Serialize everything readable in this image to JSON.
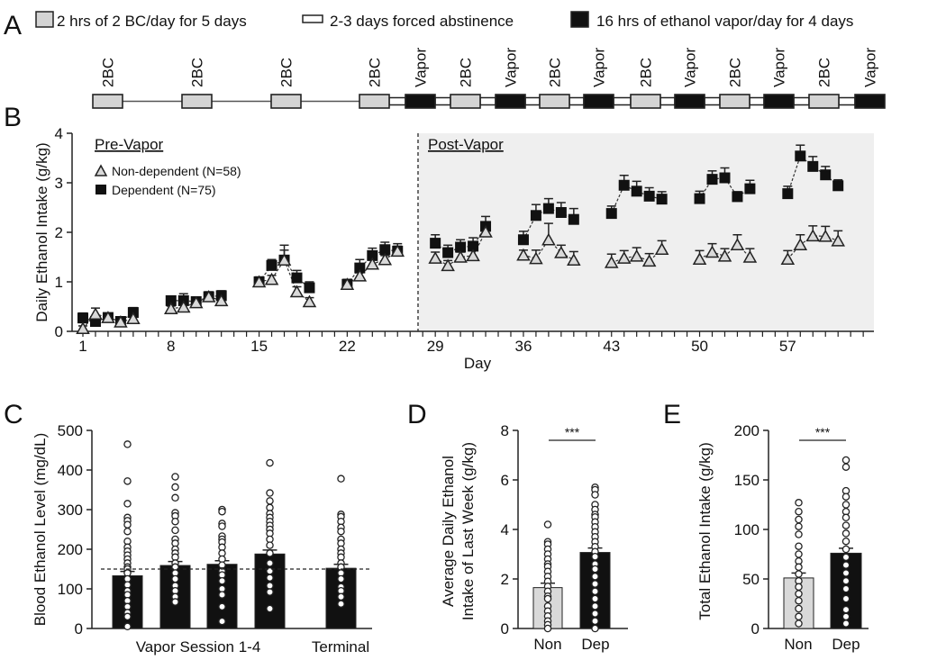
{
  "panel_letters": {
    "a": "A",
    "b": "B",
    "c": "C",
    "d": "D",
    "e": "E"
  },
  "colors": {
    "bc": "#d4d4d4",
    "vapor": "#111111",
    "non": "#d9d9d9",
    "dep": "#111111",
    "shade": "#efefef"
  },
  "panel_a": {
    "legend": [
      {
        "type": "bc",
        "label": "2 hrs of 2 BC/day for 5 days"
      },
      {
        "type": "abstinence",
        "label": "2-3 days forced abstinence"
      },
      {
        "type": "vapor",
        "label": "16 hrs of ethanol vapor/day for 4 days"
      }
    ],
    "timeline": [
      {
        "type": "bc",
        "label": "2BC"
      },
      {
        "type": "bc",
        "label": "2BC"
      },
      {
        "type": "bc",
        "label": "2BC"
      },
      {
        "type": "bc",
        "label": "2BC"
      },
      {
        "type": "vapor",
        "label": "Vapor"
      },
      {
        "type": "bc",
        "label": "2BC"
      },
      {
        "type": "vapor",
        "label": "Vapor"
      },
      {
        "type": "bc",
        "label": "2BC"
      },
      {
        "type": "vapor",
        "label": "Vapor"
      },
      {
        "type": "bc",
        "label": "2BC"
      },
      {
        "type": "vapor",
        "label": "Vapor"
      },
      {
        "type": "bc",
        "label": "2BC"
      },
      {
        "type": "vapor",
        "label": "Vapor"
      },
      {
        "type": "bc",
        "label": "2BC"
      },
      {
        "type": "vapor",
        "label": "Vapor"
      }
    ]
  },
  "chart_data": [
    {
      "id": "B",
      "type": "scatter",
      "xlabel": "Day",
      "ylabel": "Daily Ethanol Intake (g/kg)",
      "xlim": [
        0.1,
        64
      ],
      "ylim": [
        0,
        4
      ],
      "x_ticks": [
        "1",
        "8",
        "15",
        "22",
        "29",
        "36",
        "43",
        "50",
        "57"
      ],
      "y_ticks": [
        "0",
        "1",
        "2",
        "3",
        "4"
      ],
      "phase_split_day": 28,
      "pre_label": "Pre-Vapor",
      "post_label": "Post-Vapor",
      "legend": {
        "non": "Non-dependent (N=58)",
        "dep": "Dependent (N=75)",
        "placement": "top-left"
      },
      "sessions": [
        {
          "days": [
            1,
            2,
            3,
            4,
            5
          ],
          "non": [
            0.06,
            0.35,
            0.28,
            0.19,
            0.26
          ],
          "non_sem": [
            0.05,
            0.12,
            0.06,
            0.06,
            0.07
          ],
          "dep": [
            0.27,
            0.2,
            0.28,
            0.2,
            0.38
          ],
          "dep_sem": [
            0.1,
            0.06,
            0.06,
            0.05,
            0.1
          ]
        },
        {
          "days": [
            8,
            9,
            10,
            11,
            12
          ],
          "non": [
            0.46,
            0.49,
            0.58,
            0.7,
            0.62
          ],
          "non_sem": [
            0.05,
            0.06,
            0.06,
            0.08,
            0.06
          ],
          "dep": [
            0.62,
            0.62,
            0.6,
            0.7,
            0.72
          ],
          "dep_sem": [
            0.08,
            0.14,
            0.08,
            0.1,
            0.1
          ]
        },
        {
          "days": [
            15,
            16,
            17,
            18,
            19
          ],
          "non": [
            1.0,
            1.05,
            1.44,
            0.8,
            0.6
          ],
          "non_sem": [
            0.08,
            0.08,
            0.2,
            0.1,
            0.08
          ],
          "dep": [
            1.0,
            1.33,
            1.44,
            1.08,
            0.88
          ],
          "dep_sem": [
            0.1,
            0.12,
            0.3,
            0.15,
            0.12
          ]
        },
        {
          "days": [
            22,
            23,
            24,
            25,
            26
          ],
          "non": [
            0.95,
            1.12,
            1.36,
            1.45,
            1.62
          ],
          "non_sem": [
            0.06,
            0.08,
            0.08,
            0.08,
            0.1
          ],
          "dep": [
            0.95,
            1.28,
            1.53,
            1.65,
            1.62
          ],
          "dep_sem": [
            0.1,
            0.17,
            0.15,
            0.15,
            0.15
          ]
        },
        {
          "days": [
            29,
            30,
            31,
            32,
            33
          ],
          "non": [
            1.48,
            1.33,
            1.5,
            1.53,
            2.01
          ],
          "non_sem": [
            0.12,
            0.1,
            0.1,
            0.1,
            0.15
          ],
          "dep": [
            1.78,
            1.59,
            1.7,
            1.72,
            2.12
          ],
          "dep_sem": [
            0.17,
            0.15,
            0.15,
            0.17,
            0.2
          ]
        },
        {
          "days": [
            36,
            37,
            38,
            39,
            40
          ],
          "non": [
            1.54,
            1.47,
            1.85,
            1.59,
            1.44
          ],
          "non_sem": [
            0.1,
            0.17,
            0.33,
            0.15,
            0.17
          ],
          "dep": [
            1.85,
            2.34,
            2.48,
            2.4,
            2.26
          ],
          "dep_sem": [
            0.17,
            0.22,
            0.2,
            0.2,
            0.22
          ]
        },
        {
          "days": [
            43,
            44,
            45,
            46,
            47
          ],
          "non": [
            1.39,
            1.48,
            1.52,
            1.42,
            1.66
          ],
          "non_sem": [
            0.17,
            0.15,
            0.17,
            0.15,
            0.17
          ],
          "dep": [
            2.38,
            2.95,
            2.83,
            2.73,
            2.67
          ],
          "dep_sem": [
            0.15,
            0.2,
            0.2,
            0.17,
            0.15
          ]
        },
        {
          "days": [
            50,
            51,
            52,
            53,
            54
          ],
          "non": [
            1.46,
            1.6,
            1.52,
            1.75,
            1.5
          ],
          "non_sem": [
            0.17,
            0.17,
            0.15,
            0.2,
            0.17
          ],
          "dep": [
            2.68,
            3.07,
            3.1,
            2.72,
            2.88
          ],
          "dep_sem": [
            0.15,
            0.17,
            0.2,
            0.1,
            0.17
          ]
        },
        {
          "days": [
            57,
            58,
            59,
            60,
            61
          ],
          "non": [
            1.46,
            1.75,
            1.93,
            1.92,
            1.83
          ],
          "non_sem": [
            0.17,
            0.2,
            0.2,
            0.2,
            0.2
          ],
          "dep": [
            2.78,
            3.54,
            3.33,
            3.16,
            2.94
          ],
          "dep_sem": [
            0.15,
            0.22,
            0.2,
            0.17,
            0.12
          ]
        }
      ]
    },
    {
      "id": "C",
      "type": "bar",
      "ylabel": "Blood Ethanol Level (mg/dL)",
      "ylim": [
        0,
        500
      ],
      "y_ticks": [
        "0",
        "100",
        "200",
        "300",
        "400",
        "500"
      ],
      "group_labels": [
        "Vapor Session 1-4",
        "Terminal"
      ],
      "reference_line": 150,
      "bars": [
        {
          "value": 133,
          "sem": 11,
          "points": [
            465,
            372,
            315,
            280,
            272,
            262,
            245,
            220,
            205,
            195,
            185,
            175,
            165,
            155,
            150,
            140,
            125,
            110,
            95,
            85,
            70,
            55,
            40,
            30,
            5
          ]
        },
        {
          "value": 159,
          "sem": 10,
          "points": [
            383,
            357,
            330,
            292,
            284,
            270,
            248,
            225,
            215,
            200,
            190,
            180,
            165,
            155,
            140,
            125,
            108,
            95,
            80,
            67
          ]
        },
        {
          "value": 162,
          "sem": 9,
          "points": [
            300,
            295,
            265,
            258,
            233,
            225,
            218,
            205,
            190,
            175,
            160,
            145,
            135,
            120,
            100,
            85,
            55,
            18
          ]
        },
        {
          "value": 188,
          "sem": 10,
          "points": [
            418,
            342,
            322,
            305,
            290,
            280,
            270,
            260,
            250,
            240,
            225,
            210,
            190,
            165,
            145,
            128,
            108,
            92,
            50
          ]
        },
        {
          "value": 152,
          "sem": 10,
          "points": [
            378,
            288,
            282,
            270,
            255,
            245,
            225,
            215,
            200,
            190,
            180,
            165,
            155,
            140,
            125,
            105,
            95,
            80,
            62
          ]
        }
      ]
    },
    {
      "id": "D",
      "type": "bar",
      "ylabel_lines": [
        "Average Daily Ethanol",
        "Intake of Last Week (g/kg)"
      ],
      "ylim": [
        0,
        8
      ],
      "y_ticks": [
        "0",
        "2",
        "4",
        "6",
        "8"
      ],
      "categories": [
        "Non",
        "Dep"
      ],
      "significance": "***",
      "bars": [
        {
          "value": 1.65,
          "sem": 0.18,
          "points": [
            4.2,
            3.5,
            3.4,
            3.2,
            3.0,
            2.8,
            2.6,
            2.5,
            2.3,
            2.1,
            1.9,
            1.7,
            1.5,
            1.3,
            1.2,
            0.9,
            0.7,
            0.5,
            0.3,
            0.15,
            0
          ]
        },
        {
          "value": 3.07,
          "sem": 0.18,
          "points": [
            5.7,
            5.6,
            5.4,
            5.0,
            4.8,
            4.6,
            4.5,
            4.3,
            4.1,
            3.9,
            3.7,
            3.5,
            3.3,
            3.1,
            2.9,
            2.6,
            2.4,
            2.1,
            1.8,
            1.5,
            1.2,
            0.9,
            0.6,
            0.3,
            0
          ]
        }
      ]
    },
    {
      "id": "E",
      "type": "bar",
      "ylabel": "Total Ethanol Intake (g/kg)",
      "ylim": [
        0,
        200
      ],
      "y_ticks": [
        "0",
        "50",
        "100",
        "150",
        "200"
      ],
      "categories": [
        "Non",
        "Dep"
      ],
      "significance": "***",
      "bars": [
        {
          "value": 51,
          "sem": 5,
          "points": [
            127,
            118,
            110,
            103,
            95,
            83,
            75,
            68,
            62,
            55,
            48,
            42,
            35,
            28,
            20,
            12,
            5
          ]
        },
        {
          "value": 76,
          "sem": 5,
          "points": [
            170,
            163,
            139,
            133,
            125,
            118,
            112,
            104,
            96,
            88,
            80,
            72,
            64,
            56,
            48,
            40,
            30,
            19,
            12,
            5
          ]
        }
      ]
    }
  ]
}
